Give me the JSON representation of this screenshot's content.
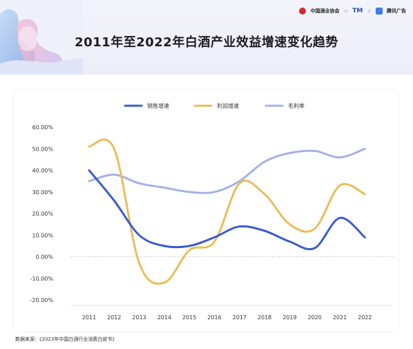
{
  "header": {
    "title": "2011年至2022年白酒产业效益增速变化趋势",
    "logos": [
      "中国酒业协会",
      "TM",
      "腾讯广告"
    ]
  },
  "colors": {
    "sales": "#3a5bd1",
    "profit": "#e9bd5a",
    "gross": "#a6b0e4"
  },
  "chart_data": {
    "type": "line",
    "title": "",
    "xlabel": "",
    "ylabel": "",
    "x": [
      "2011",
      "2012",
      "2013",
      "2014",
      "2015",
      "2016",
      "2017",
      "2018",
      "2019",
      "2020",
      "2021",
      "2022"
    ],
    "ylim": [
      -20,
      60
    ],
    "yticks": [
      "60.00%",
      "50.00%",
      "40.00%",
      "30.00%",
      "20.00%",
      "10.00%",
      "0.00%",
      "-10.00%",
      "-20.00%"
    ],
    "legend_position": "top",
    "series": [
      {
        "name": "销售增速",
        "values": [
          40,
          26,
          10,
          5,
          5,
          9,
          14,
          12,
          7,
          4,
          18,
          9
        ]
      },
      {
        "name": "利润增速",
        "values": [
          51,
          50,
          -3,
          -12,
          3,
          7,
          34,
          29,
          15,
          13,
          33,
          29
        ]
      },
      {
        "name": "毛利率",
        "values": [
          35,
          38,
          34,
          32,
          30,
          30,
          35,
          44,
          48,
          49,
          46,
          50
        ]
      }
    ]
  },
  "source": "数据来源：《2023年中国白酒行业消费白皮书》"
}
